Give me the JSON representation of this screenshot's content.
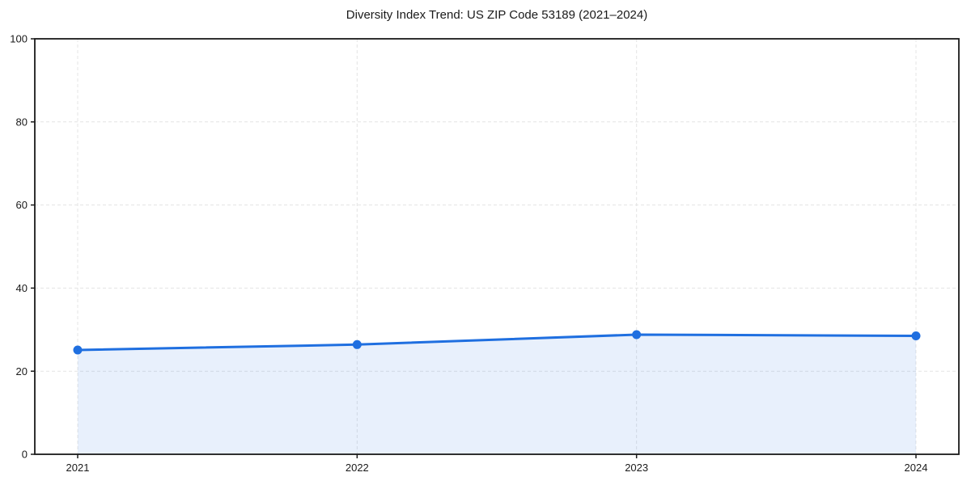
{
  "page": {
    "background_color": "#ffffff"
  },
  "chart_data": {
    "type": "line",
    "title": "Diversity Index Trend: US ZIP Code 53189 (2021–2024)",
    "categories": [
      "2021",
      "2022",
      "2023",
      "2024"
    ],
    "series": [
      {
        "name": "Diversity Index",
        "values": [
          25.1,
          26.4,
          28.8,
          28.5
        ]
      }
    ],
    "xlabel": "",
    "ylabel": "",
    "ylim": [
      0,
      100
    ],
    "yticks": [
      0,
      20,
      40,
      60,
      80,
      100
    ],
    "grid": true,
    "grid_style": "dashed",
    "legend_position": "none",
    "line_color": "#1f6fe0",
    "marker": "circle",
    "marker_radius": 5.5,
    "line_width": 3,
    "area_fill": true,
    "area_opacity": 0.1,
    "grid_color": "#e4e4e4",
    "spine_color": "#1a1a1a",
    "text_color": "#1a1a1a"
  }
}
